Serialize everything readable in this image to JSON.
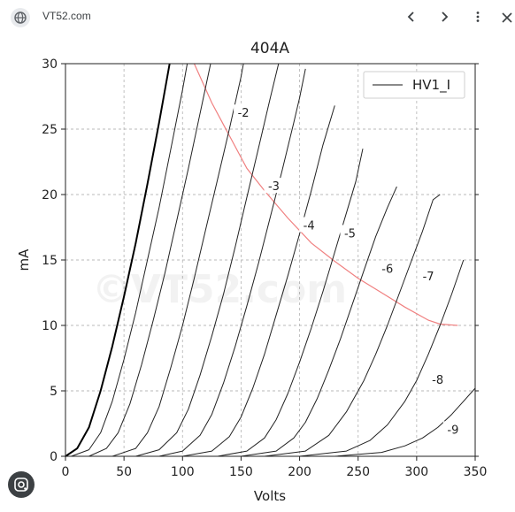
{
  "header": {
    "site_name": "VT52.com",
    "icons": {
      "site": "globe-icon",
      "back": "chevron-left-icon",
      "forward": "chevron-right-icon",
      "menu": "more-vertical-icon",
      "close": "close-icon"
    }
  },
  "lens": {
    "icon": "lens-icon"
  },
  "watermark": "©VT52.com",
  "chart_data": {
    "type": "line",
    "title": "404A",
    "xlabel": "Volts",
    "ylabel": "mA",
    "xlim": [
      0,
      350
    ],
    "ylim": [
      0,
      30
    ],
    "xticks": [
      "0",
      "50",
      "100",
      "150",
      "200",
      "250",
      "300",
      "350"
    ],
    "yticks": [
      "0",
      "5",
      "10",
      "15",
      "20",
      "25",
      "30"
    ],
    "grid": true,
    "legend": {
      "position": "top-right",
      "entries": [
        {
          "name": "HV1_I",
          "color": "#444444"
        }
      ]
    },
    "series": [
      {
        "label": "",
        "color": "#000000",
        "width": 2.0,
        "points": [
          [
            0,
            0
          ],
          [
            10,
            0.6
          ],
          [
            20,
            2.2
          ],
          [
            30,
            5.0
          ],
          [
            40,
            8.4
          ],
          [
            50,
            12.2
          ],
          [
            60,
            16.3
          ],
          [
            70,
            20.8
          ],
          [
            80,
            25.5
          ],
          [
            89,
            30
          ]
        ]
      },
      {
        "label": "",
        "color": "#222222",
        "width": 1.0,
        "points": [
          [
            5,
            0
          ],
          [
            20,
            0.5
          ],
          [
            30,
            1.8
          ],
          [
            40,
            4.2
          ],
          [
            50,
            7.4
          ],
          [
            60,
            11.0
          ],
          [
            70,
            15.0
          ],
          [
            80,
            19.0
          ],
          [
            90,
            23.5
          ],
          [
            100,
            28.0
          ],
          [
            104,
            30
          ]
        ]
      },
      {
        "label": "",
        "color": "#222222",
        "width": 1.0,
        "points": [
          [
            20,
            0
          ],
          [
            35,
            0.6
          ],
          [
            45,
            1.8
          ],
          [
            55,
            4.0
          ],
          [
            65,
            7.0
          ],
          [
            75,
            10.4
          ],
          [
            85,
            14.0
          ],
          [
            95,
            18.0
          ],
          [
            105,
            22.0
          ],
          [
            115,
            26.2
          ],
          [
            124,
            30
          ]
        ]
      },
      {
        "label": "-2",
        "labelAt": [
          152,
          26.2
        ],
        "color": "#222222",
        "width": 1.0,
        "points": [
          [
            40,
            0
          ],
          [
            60,
            0.6
          ],
          [
            70,
            1.8
          ],
          [
            80,
            3.8
          ],
          [
            90,
            6.8
          ],
          [
            100,
            10.0
          ],
          [
            110,
            13.6
          ],
          [
            120,
            17.4
          ],
          [
            130,
            21.2
          ],
          [
            140,
            25.0
          ],
          [
            150,
            29.0
          ],
          [
            152,
            30
          ]
        ]
      },
      {
        "label": "-3",
        "labelAt": [
          178,
          20.6
        ],
        "color": "#222222",
        "width": 1.0,
        "points": [
          [
            60,
            0
          ],
          [
            80,
            0.5
          ],
          [
            95,
            1.8
          ],
          [
            105,
            3.6
          ],
          [
            115,
            6.2
          ],
          [
            125,
            9.2
          ],
          [
            135,
            12.4
          ],
          [
            145,
            16.0
          ],
          [
            155,
            19.8
          ],
          [
            165,
            23.6
          ],
          [
            175,
            27.4
          ],
          [
            182,
            30
          ]
        ]
      },
      {
        "label": "-4",
        "labelAt": [
          208,
          17.6
        ],
        "color": "#222222",
        "width": 1.0,
        "points": [
          [
            80,
            0
          ],
          [
            100,
            0.4
          ],
          [
            115,
            1.6
          ],
          [
            125,
            3.2
          ],
          [
            135,
            5.6
          ],
          [
            145,
            8.4
          ],
          [
            155,
            11.5
          ],
          [
            165,
            14.8
          ],
          [
            175,
            18.3
          ],
          [
            185,
            21.8
          ],
          [
            195,
            25.5
          ],
          [
            200,
            27.4
          ],
          [
            205,
            29.6
          ]
        ]
      },
      {
        "label": "-5",
        "labelAt": [
          243,
          17.0
        ],
        "color": "#222222",
        "width": 1.0,
        "points": [
          [
            100,
            0
          ],
          [
            125,
            0.4
          ],
          [
            140,
            1.5
          ],
          [
            150,
            3.0
          ],
          [
            160,
            5.2
          ],
          [
            170,
            7.8
          ],
          [
            180,
            10.8
          ],
          [
            190,
            13.8
          ],
          [
            200,
            17.0
          ],
          [
            210,
            20.3
          ],
          [
            220,
            23.8
          ],
          [
            230,
            26.8
          ]
        ]
      },
      {
        "label": "-6",
        "labelAt": [
          275,
          14.3
        ],
        "color": "#222222",
        "width": 1.0,
        "points": [
          [
            130,
            0
          ],
          [
            155,
            0.4
          ],
          [
            170,
            1.4
          ],
          [
            180,
            2.8
          ],
          [
            190,
            4.8
          ],
          [
            200,
            7.2
          ],
          [
            210,
            9.8
          ],
          [
            220,
            12.6
          ],
          [
            230,
            15.6
          ],
          [
            240,
            18.6
          ],
          [
            248,
            21.0
          ],
          [
            254,
            23.5
          ]
        ]
      },
      {
        "label": "-7",
        "labelAt": [
          310,
          13.7
        ],
        "color": "#222222",
        "width": 1.0,
        "points": [
          [
            150,
            0
          ],
          [
            180,
            0.4
          ],
          [
            195,
            1.4
          ],
          [
            205,
            2.6
          ],
          [
            215,
            4.4
          ],
          [
            225,
            6.6
          ],
          [
            235,
            9.0
          ],
          [
            245,
            11.6
          ],
          [
            255,
            14.2
          ],
          [
            265,
            16.8
          ],
          [
            275,
            19.0
          ],
          [
            283,
            20.6
          ]
        ]
      },
      {
        "label": "",
        "color": "#222222",
        "width": 1.0,
        "points": [
          [
            170,
            0
          ],
          [
            205,
            0.4
          ],
          [
            225,
            1.6
          ],
          [
            240,
            3.4
          ],
          [
            255,
            5.8
          ],
          [
            265,
            7.8
          ],
          [
            275,
            10.0
          ],
          [
            285,
            12.4
          ],
          [
            295,
            14.8
          ],
          [
            305,
            17.2
          ],
          [
            314,
            19.6
          ],
          [
            320,
            20.0
          ]
        ]
      },
      {
        "label": "-8",
        "labelAt": [
          318,
          5.8
        ],
        "color": "#222222",
        "width": 1.0,
        "points": [
          [
            200,
            0
          ],
          [
            240,
            0.4
          ],
          [
            260,
            1.2
          ],
          [
            275,
            2.4
          ],
          [
            290,
            4.2
          ],
          [
            300,
            5.8
          ],
          [
            310,
            7.8
          ],
          [
            320,
            10.0
          ],
          [
            330,
            12.4
          ],
          [
            340,
            15.0
          ]
        ]
      },
      {
        "label": "-9",
        "labelAt": [
          331,
          2.0
        ],
        "color": "#222222",
        "width": 1.0,
        "points": [
          [
            230,
            0
          ],
          [
            270,
            0.3
          ],
          [
            290,
            0.8
          ],
          [
            305,
            1.4
          ],
          [
            318,
            2.2
          ],
          [
            330,
            3.2
          ],
          [
            340,
            4.2
          ],
          [
            350,
            5.2
          ]
        ]
      }
    ],
    "limit_curve": {
      "color": "#f08080",
      "points": [
        [
          110,
          30
        ],
        [
          125,
          27
        ],
        [
          140,
          24.5
        ],
        [
          155,
          22
        ],
        [
          170,
          20.3
        ],
        [
          190,
          18.2
        ],
        [
          210,
          16.3
        ],
        [
          230,
          14.9
        ],
        [
          250,
          13.6
        ],
        [
          270,
          12.5
        ],
        [
          290,
          11.4
        ],
        [
          310,
          10.4
        ],
        [
          320,
          10.1
        ],
        [
          335,
          10
        ]
      ]
    }
  }
}
